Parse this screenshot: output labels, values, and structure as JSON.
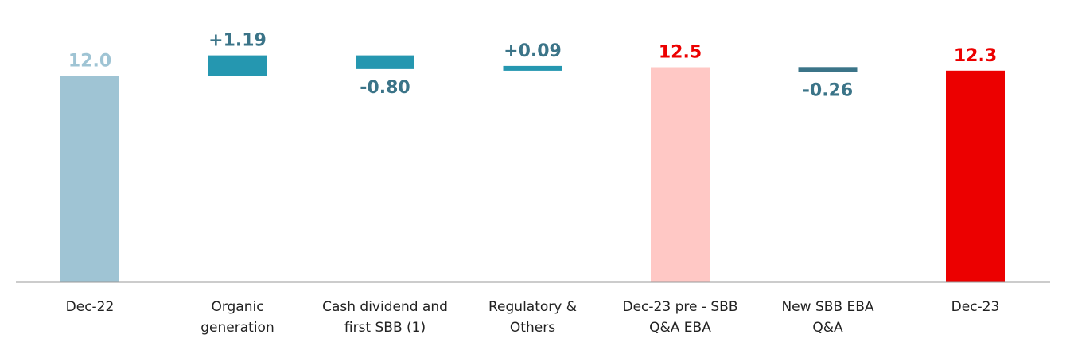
{
  "chart_data": {
    "type": "waterfall",
    "title": "",
    "xlabel": "",
    "ylabel": "",
    "ylim": [
      0,
      14.1
    ],
    "grid": false,
    "legend": "none",
    "bars": [
      {
        "category": [
          "Dec-22"
        ],
        "kind": "total",
        "start": 0,
        "end": 12.0,
        "label": "12.0",
        "color": "#9fc4d4",
        "label_color": "#9fc4d4"
      },
      {
        "category": [
          "Organic",
          "generation"
        ],
        "kind": "delta",
        "start": 12.0,
        "end": 13.19,
        "label": "+1.19",
        "color": "#2597b0",
        "label_color": "#3b7488"
      },
      {
        "category": [
          "Cash dividend and",
          "first SBB (1)"
        ],
        "kind": "delta",
        "start": 13.19,
        "end": 12.39,
        "label": "-0.80",
        "color": "#2597b0",
        "label_color": "#3b7488"
      },
      {
        "category": [
          "Regulatory &",
          "Others"
        ],
        "kind": "delta",
        "start": 12.39,
        "end": 12.48,
        "label": "+0.09",
        "color": "#2597b0",
        "label_color": "#3b7488"
      },
      {
        "category": [
          "Dec-23 pre - SBB",
          "Q&A EBA"
        ],
        "kind": "total",
        "start": 0,
        "end": 12.5,
        "label": "12.5",
        "color": "#ffc8c5",
        "label_color": "#ec0000"
      },
      {
        "category": [
          "New SBB EBA",
          "Q&A"
        ],
        "kind": "delta",
        "start": 12.5,
        "end": 12.24,
        "label": "-0.26",
        "color": "#3b7488",
        "label_color": "#3b7488"
      },
      {
        "category": [
          "Dec-23"
        ],
        "kind": "total",
        "start": 0,
        "end": 12.3,
        "label": "12.3",
        "color": "#ec0000",
        "label_color": "#ec0000"
      }
    ],
    "axis_color": "#999999"
  }
}
